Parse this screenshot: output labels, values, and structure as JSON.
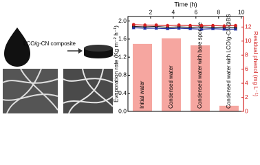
{
  "illustration": {
    "label": "LCO/g-CN composite"
  },
  "chart_data": {
    "type": "bar_line",
    "xlabel": "Time (h)",
    "ylabel": "Evaporation rate (Kg m⁻² h⁻¹)",
    "y2label": "Residual phenol (mg L⁻¹)",
    "xlim": [
      0,
      10.2
    ],
    "xticks": [
      2,
      4,
      6,
      8,
      10
    ],
    "ylim": [
      0,
      2.1
    ],
    "yticks": [
      {
        "value": 0,
        "label": "0.0"
      },
      0.4,
      0.8,
      1.2,
      1.6,
      {
        "value": 2,
        "label": "2.0"
      }
    ],
    "y2lim": [
      0,
      13.5
    ],
    "y2ticks": [
      0,
      2,
      4,
      6,
      8,
      10,
      12
    ],
    "y2color": "#d42020",
    "x": [
      0.5,
      1.5,
      2.5,
      3.5,
      4.5,
      5.5,
      6.5,
      7.5,
      8.5,
      9.5
    ],
    "series": [
      {
        "color": "#222222",
        "marker": "square",
        "values": [
          1.88,
          1.87,
          1.88,
          1.86,
          1.87,
          1.86,
          1.87,
          1.86,
          1.86,
          1.85
        ]
      },
      {
        "color": "#d42020",
        "marker": "circle",
        "values": [
          1.92,
          1.91,
          1.91,
          1.9,
          1.91,
          1.9,
          1.9,
          1.9,
          1.89,
          1.9
        ]
      },
      {
        "color": "#2030a0",
        "marker": "triangle",
        "values": [
          1.85,
          1.84,
          1.84,
          1.83,
          1.84,
          1.83,
          1.82,
          1.83,
          1.82,
          1.82
        ]
      }
    ],
    "bars": {
      "axis": "y2",
      "color": "#f6a6a0",
      "categories": [
        "Initial water",
        "Condensed water",
        "Condensed water with bare sponge",
        "Condensed water with LCO/g-CN@BS"
      ],
      "values": [
        9.6,
        10.4,
        9.4,
        0.8
      ]
    }
  }
}
